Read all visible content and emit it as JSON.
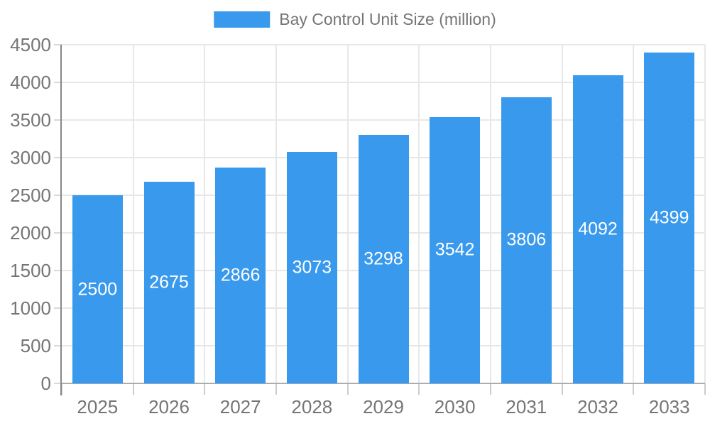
{
  "chart_data": {
    "type": "bar",
    "title": "Bay Control Unit Size (million)",
    "legend_entries": [
      "Bay Control Unit Size (million)"
    ],
    "legend_position": "top-center",
    "categories": [
      "2025",
      "2026",
      "2027",
      "2028",
      "2029",
      "2030",
      "2031",
      "2032",
      "2033"
    ],
    "values": [
      2500,
      2675,
      2866,
      3073,
      3298,
      3542,
      3806,
      4092,
      4399
    ],
    "xlabel": "",
    "ylabel": "",
    "ylim": [
      0,
      4500
    ],
    "ytick_interval": 500,
    "grid": true,
    "value_labels": "inside-middle",
    "colors": {
      "bar": "#3999EC",
      "grid": "#E7E7E7",
      "y_axis_line": "#878787",
      "x_axis_line": "#ADADAD",
      "y_tick": "#D9D9D9",
      "x_tick": "#CCCCCC",
      "axis_text": "#757575",
      "value_text": "#FFFFFF"
    }
  }
}
